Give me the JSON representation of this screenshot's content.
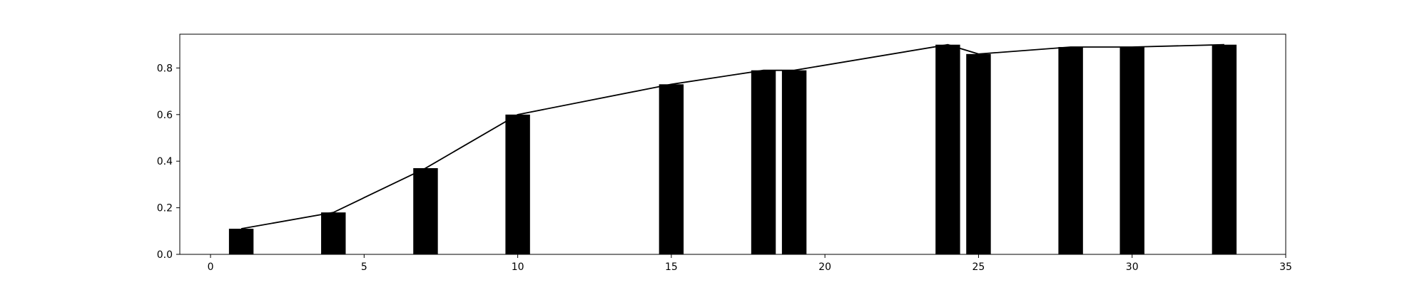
{
  "chart_data": {
    "type": "bar",
    "x": [
      1,
      4,
      7,
      10,
      15,
      18,
      19,
      24,
      25,
      28,
      30,
      33
    ],
    "values": [
      0.11,
      0.18,
      0.37,
      0.6,
      0.73,
      0.79,
      0.79,
      0.9,
      0.86,
      0.89,
      0.89,
      0.9
    ],
    "line_overlay": true,
    "bar_width": 0.8,
    "xlim": [
      -1,
      35
    ],
    "ylim": [
      0,
      0.945
    ],
    "xticks": [
      0,
      5,
      10,
      15,
      20,
      25,
      30,
      35
    ],
    "yticks": [
      0.0,
      0.2,
      0.4,
      0.6,
      0.8
    ],
    "xtick_labels": [
      "0",
      "5",
      "10",
      "15",
      "20",
      "25",
      "30",
      "35"
    ],
    "ytick_labels": [
      "0.0",
      "0.2",
      "0.4",
      "0.6",
      "0.8"
    ],
    "title": "",
    "xlabel": "",
    "ylabel": "",
    "grid": false,
    "colors": {
      "bar": "#000000",
      "line": "#000000",
      "axes": "#000000"
    }
  }
}
